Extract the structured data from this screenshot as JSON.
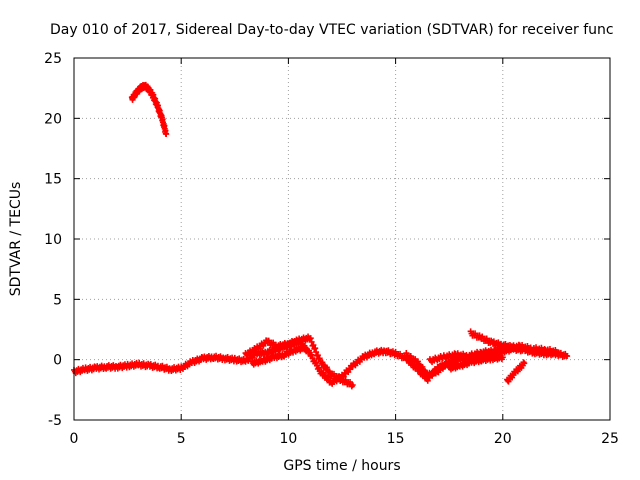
{
  "chart_data": {
    "type": "scatter",
    "title": "Day 010 of 2017, Sidereal Day-to-day VTEC variation (SDTVAR) for receiver func",
    "xlabel": "GPS time / hours",
    "ylabel": "SDTVAR / TECUs",
    "xlim": [
      0,
      25
    ],
    "ylim": [
      -5,
      25
    ],
    "xticks": [
      "0",
      "5",
      "10",
      "15",
      "20",
      "25"
    ],
    "yticks": [
      "-5",
      "0",
      "5",
      "10",
      "15",
      "20",
      "25"
    ],
    "grid": true,
    "marker": "plus",
    "series": [
      {
        "name": "SDTVAR",
        "color": "#ff0000",
        "segments": [
          {
            "x": [
              2.7,
              2.9,
              3.1,
              3.3,
              3.5,
              3.7,
              3.9,
              4.1,
              4.3
            ],
            "y": [
              21.6,
              22.1,
              22.5,
              22.7,
              22.4,
              21.8,
              21.0,
              20.0,
              18.7
            ]
          },
          {
            "x": [
              0.0,
              0.5,
              1.0,
              1.5,
              2.0,
              2.5,
              3.0,
              3.5,
              4.0,
              4.5,
              5.0,
              5.5,
              6.0,
              6.5,
              7.0,
              7.5,
              8.0,
              8.5,
              9.0,
              9.5,
              10.0,
              10.5,
              11.0,
              11.5,
              12.0,
              12.5,
              13.0,
              13.5,
              14.0,
              14.5,
              15.0,
              15.5,
              16.0,
              16.5,
              17.0,
              17.5,
              18.0,
              18.5,
              19.0,
              19.5,
              20.0,
              20.5,
              21.0,
              21.5,
              22.0,
              22.5,
              23.0
            ],
            "y": [
              -1.0,
              -0.8,
              -0.7,
              -0.6,
              -0.6,
              -0.5,
              -0.4,
              -0.5,
              -0.6,
              -0.8,
              -0.7,
              -0.2,
              0.1,
              0.2,
              0.1,
              0.0,
              -0.1,
              0.5,
              0.6,
              0.9,
              1.2,
              1.5,
              0.5,
              -1.0,
              -1.9,
              -1.4,
              -0.5,
              0.2,
              0.6,
              0.7,
              0.5,
              0.1,
              -0.8,
              -1.6,
              -0.6,
              -0.3,
              0.1,
              0.2,
              0.4,
              0.6,
              0.7,
              0.9,
              0.8,
              0.6,
              0.5,
              0.5,
              0.3
            ]
          },
          {
            "x": [
              8.0,
              8.5,
              9.0,
              9.5,
              10.0,
              10.5,
              11.0,
              11.5,
              12.0,
              12.5,
              13.0
            ],
            "y": [
              0.4,
              0.9,
              1.5,
              1.1,
              1.3,
              1.6,
              1.8,
              -0.2,
              -1.2,
              -1.7,
              -2.1
            ]
          },
          {
            "x": [
              8.3,
              8.8,
              9.3,
              9.8,
              10.3,
              10.8
            ],
            "y": [
              -0.3,
              -0.1,
              0.2,
              0.4,
              0.8,
              1.0
            ]
          },
          {
            "x": [
              15.5,
              16.0,
              16.5,
              17.0,
              17.5,
              18.0
            ],
            "y": [
              0.4,
              -0.2,
              -1.3,
              -0.9,
              -0.2,
              0.3
            ]
          },
          {
            "x": [
              16.6,
              17.2,
              17.8,
              18.4,
              19.0,
              19.6,
              20.2,
              20.8,
              21.4,
              22.0,
              22.6
            ],
            "y": [
              -0.1,
              0.2,
              0.4,
              0.3,
              0.6,
              0.7,
              1.0,
              1.1,
              0.9,
              0.8,
              0.6
            ]
          },
          {
            "x": [
              17.5,
              18.0,
              18.5,
              19.0,
              19.5,
              20.0
            ],
            "y": [
              -0.7,
              -0.5,
              -0.2,
              0.0,
              0.1,
              0.2
            ]
          },
          {
            "x": [
              18.5,
              19.0,
              19.5,
              20.0,
              20.5
            ],
            "y": [
              2.2,
              1.8,
              1.4,
              1.2,
              1.0
            ]
          },
          {
            "x": [
              20.2,
              20.6,
              21.0
            ],
            "y": [
              -1.8,
              -1.0,
              -0.3
            ]
          }
        ]
      }
    ]
  }
}
